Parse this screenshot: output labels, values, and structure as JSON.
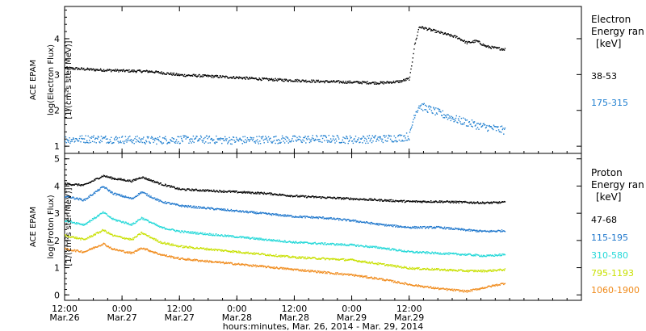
{
  "chart_data": [
    {
      "type": "scatter",
      "panel": "electron",
      "ylabel_lines": [
        "ACE EPAM",
        "log(Electron Flux)",
        "[1/(cm²s ster MeV)]"
      ],
      "ylim": [
        0.8,
        4.9
      ],
      "yticks": [
        1,
        2,
        3,
        4
      ],
      "legend_title": [
        "Electron",
        "Energy ran",
        "[keV]"
      ],
      "series": [
        {
          "name": "38-53",
          "color": "#000000",
          "x": [
            0,
            6,
            12,
            18,
            24,
            30,
            36,
            42,
            48,
            54,
            60,
            66,
            70,
            72,
            73,
            74,
            78,
            82,
            84,
            86,
            88,
            90,
            92
          ],
          "y": [
            3.2,
            3.15,
            3.12,
            3.1,
            3.0,
            2.97,
            2.93,
            2.88,
            2.85,
            2.82,
            2.8,
            2.78,
            2.82,
            2.9,
            3.8,
            4.35,
            4.2,
            4.05,
            3.9,
            3.95,
            3.8,
            3.75,
            3.72
          ]
        },
        {
          "name": "175-315",
          "color": "#1f7fd0",
          "x": [
            0,
            6,
            12,
            18,
            24,
            30,
            36,
            42,
            48,
            54,
            60,
            66,
            70,
            72,
            73,
            74,
            78,
            82,
            86,
            90,
            92
          ],
          "y": [
            1.2,
            1.22,
            1.2,
            1.18,
            1.2,
            1.2,
            1.18,
            1.2,
            1.2,
            1.22,
            1.2,
            1.22,
            1.25,
            1.3,
            1.9,
            2.15,
            1.95,
            1.75,
            1.6,
            1.5,
            1.45
          ]
        }
      ]
    },
    {
      "type": "scatter",
      "panel": "proton",
      "ylabel_lines": [
        "ACE EPAM",
        "log(Proton Flux)",
        "[1/(cm²s ster MeV)]"
      ],
      "ylim": [
        -0.2,
        5.2
      ],
      "yticks": [
        0,
        1,
        2,
        3,
        4,
        5
      ],
      "legend_title": [
        "Proton",
        "Energy ran",
        "[keV]"
      ],
      "series": [
        {
          "name": "47-68",
          "color": "#000000",
          "x": [
            0,
            4,
            8,
            10,
            14,
            16,
            20,
            24,
            30,
            36,
            42,
            48,
            54,
            60,
            66,
            72,
            78,
            84,
            88,
            92
          ],
          "y": [
            4.1,
            4.05,
            4.4,
            4.3,
            4.2,
            4.35,
            4.1,
            3.9,
            3.85,
            3.8,
            3.75,
            3.65,
            3.6,
            3.55,
            3.5,
            3.45,
            3.45,
            3.42,
            3.4,
            3.42
          ]
        },
        {
          "name": "115-195",
          "color": "#1f77cc",
          "x": [
            0,
            4,
            8,
            10,
            14,
            16,
            20,
            24,
            30,
            36,
            42,
            48,
            54,
            60,
            66,
            72,
            78,
            84,
            88,
            92
          ],
          "y": [
            3.65,
            3.5,
            4.0,
            3.75,
            3.55,
            3.8,
            3.45,
            3.3,
            3.2,
            3.1,
            3.0,
            2.9,
            2.85,
            2.75,
            2.6,
            2.5,
            2.5,
            2.4,
            2.35,
            2.38
          ]
        },
        {
          "name": "310-580",
          "color": "#22d8d8",
          "x": [
            0,
            4,
            8,
            10,
            14,
            16,
            20,
            24,
            30,
            36,
            42,
            48,
            54,
            60,
            66,
            72,
            78,
            84,
            88,
            92
          ],
          "y": [
            2.75,
            2.6,
            3.05,
            2.8,
            2.6,
            2.85,
            2.5,
            2.35,
            2.25,
            2.15,
            2.05,
            1.95,
            1.9,
            1.85,
            1.75,
            1.6,
            1.55,
            1.5,
            1.45,
            1.5
          ]
        },
        {
          "name": "795-1193",
          "color": "#c8e000",
          "x": [
            0,
            4,
            8,
            10,
            14,
            16,
            20,
            24,
            30,
            36,
            42,
            48,
            54,
            60,
            66,
            72,
            78,
            84,
            88,
            92
          ],
          "y": [
            2.2,
            2.05,
            2.4,
            2.2,
            2.05,
            2.3,
            1.95,
            1.8,
            1.7,
            1.6,
            1.5,
            1.4,
            1.35,
            1.3,
            1.15,
            1.0,
            0.95,
            0.9,
            0.9,
            0.95
          ]
        },
        {
          "name": "1060-1900",
          "color": "#f08a1a",
          "x": [
            0,
            4,
            8,
            10,
            14,
            16,
            20,
            24,
            30,
            36,
            42,
            48,
            54,
            60,
            66,
            72,
            78,
            84,
            88,
            92
          ],
          "y": [
            1.7,
            1.6,
            1.9,
            1.7,
            1.55,
            1.75,
            1.5,
            1.35,
            1.25,
            1.15,
            1.05,
            0.95,
            0.85,
            0.75,
            0.6,
            0.4,
            0.25,
            0.15,
            0.3,
            0.45
          ]
        }
      ]
    }
  ],
  "xaxis": {
    "range": [
      0,
      108
    ],
    "ticks": [
      {
        "h": 0,
        "line1": "12:00",
        "line2": "Mar.26"
      },
      {
        "h": 12,
        "line1": "0:00",
        "line2": "Mar.27"
      },
      {
        "h": 24,
        "line1": "12:00",
        "line2": "Mar.27"
      },
      {
        "h": 36,
        "line1": "0:00",
        "line2": "Mar.28"
      },
      {
        "h": 48,
        "line1": "12:00",
        "line2": "Mar.28"
      },
      {
        "h": 60,
        "line1": "0:00",
        "line2": "Mar.29"
      },
      {
        "h": 72,
        "line1": "12:00",
        "line2": "Mar.29"
      }
    ],
    "label": "hours:minutes, Mar. 26, 2014 - Mar. 29, 2014"
  }
}
